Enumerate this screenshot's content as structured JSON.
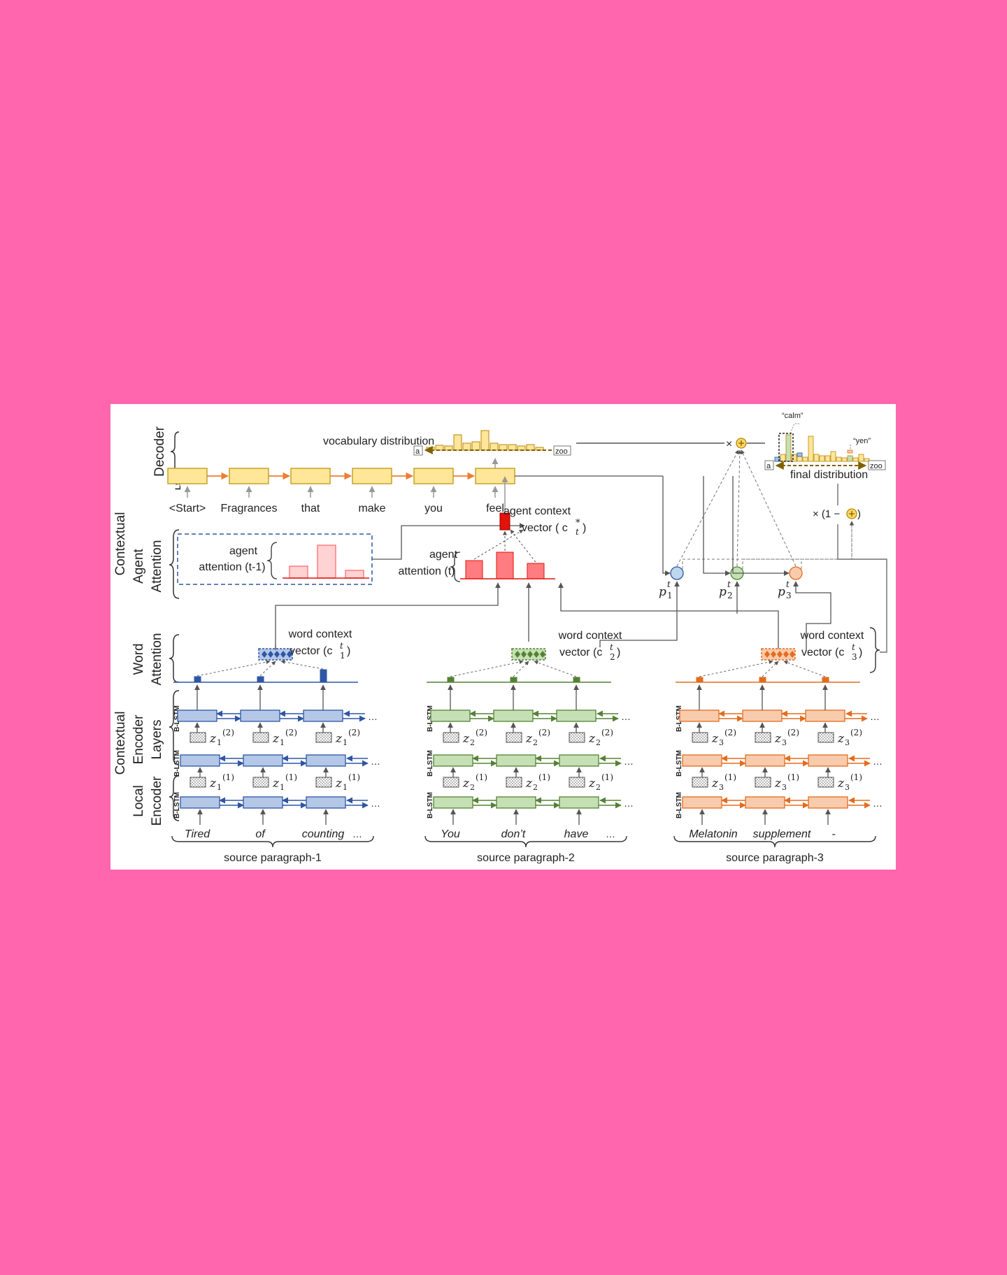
{
  "decoder": {
    "section_label": "Decoder",
    "cell_label": "LSTM",
    "tokens": [
      "<Start>",
      "Fragrances",
      "that",
      "make",
      "you",
      "feel"
    ]
  },
  "vocab": {
    "label": "vocabulary distribution",
    "start_tick": "a",
    "end_tick": "zoo"
  },
  "final": {
    "label": "final distribution",
    "calm_label": "“calm”",
    "yen_label": "“yen”",
    "start_tick": "a",
    "end_tick": "zoo",
    "times": "×",
    "one_minus": "× (1 −",
    "close_paren": ")"
  },
  "agent_attention": {
    "section_label_1": "Contextual",
    "section_label_2": "Agent",
    "section_label_3": "Attention",
    "prev_label_1": "agent",
    "prev_label_2": "attention (t-1)",
    "curr_label_1": "agent",
    "curr_label_2": "attention (t)",
    "context_label_1": "agent context",
    "context_label_2": "vector ( c",
    "context_sup": "*",
    "context_sub": "t",
    "context_close": ")"
  },
  "word_attention": {
    "section_label_1": "Word",
    "section_label_2": "Attention",
    "context_title": "word context",
    "vector_prefix": "vector (c",
    "vector_sup": "t",
    "vector_close": ")"
  },
  "encoder": {
    "contextual_label_1": "Contextual",
    "contextual_label_2": "Encoder",
    "contextual_label_3": "Layers",
    "local_label_1": "Local",
    "local_label_2": "Encoder",
    "blstm_label": "B-LSTM",
    "z_letter": "z",
    "ellipsis": "…"
  },
  "gates": {
    "p_letter": "p",
    "sup": "t",
    "subs": [
      "1",
      "2",
      "3"
    ]
  },
  "paragraphs": [
    {
      "label": "source paragraph-1",
      "words": [
        "Tired",
        "of",
        "counting"
      ],
      "trailing": "…",
      "color": "#2E56A3",
      "fill": "#B4C7E7",
      "index": "1"
    },
    {
      "label": "source paragraph-2",
      "words": [
        "You",
        "don’t",
        "have"
      ],
      "trailing": "…",
      "color": "#548235",
      "fill": "#C5E0B4",
      "index": "2"
    },
    {
      "label": "source paragraph-3",
      "words": [
        "Melatonin",
        "supplement",
        "-"
      ],
      "trailing": "",
      "color": "#E36C1E",
      "fill": "#F8CBAD",
      "index": "3"
    }
  ],
  "colors": {
    "decoder_fill": "#FFE699",
    "decoder_stroke": "#C9A227",
    "decoder_arrow": "#ED7D31",
    "agent_red": "#FF7C80",
    "agent_context": "#E3120B",
    "gate_blue": "#BDD7EE",
    "gate_green": "#C5E0B4",
    "gate_orange": "#F8CBAD",
    "sum_yellow": "#FFD966"
  }
}
